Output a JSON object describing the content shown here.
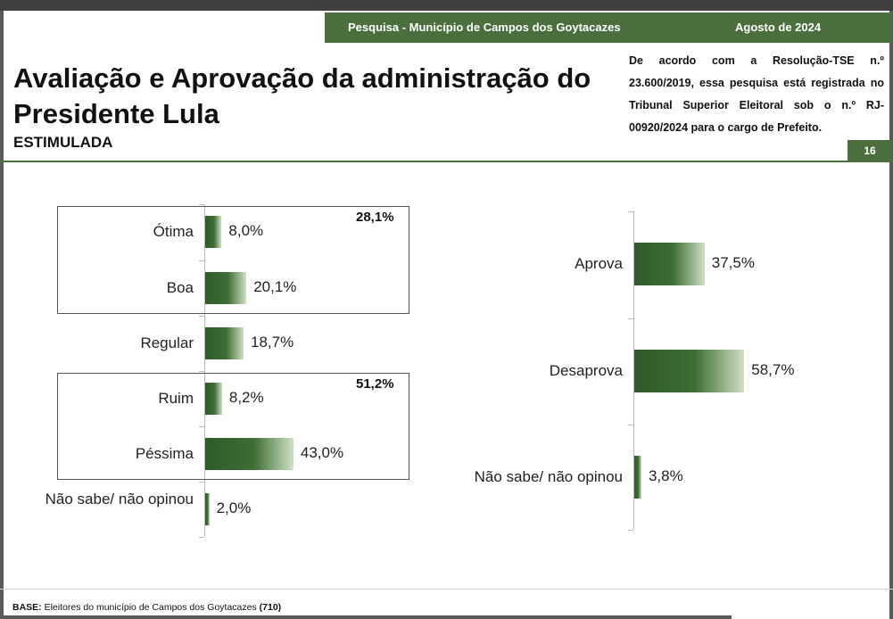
{
  "header": {
    "survey_title": "Pesquisa - Município de Campos dos Goytacazes",
    "date": "Agosto de 2024",
    "legal_text": "De acordo com a Resolução-TSE n.º 23.600/2019, essa pesquisa está registrada no Tribunal Superior Eleitoral sob o n.º RJ-00920/2024 para o cargo de Prefeito.",
    "page_number": "16"
  },
  "title": "Avaliação e Aprovação da administração do Presidente Lula",
  "subtitle": "ESTIMULADA",
  "footer": {
    "base_label": "BASE:",
    "base_text": "Eleitores do município de Campos dos Goytacazes",
    "base_n": "(710)"
  },
  "colors": {
    "accent": "#4a6e3c",
    "bar": "#3f6d34"
  },
  "chart_data": [
    {
      "type": "bar",
      "orientation": "horizontal",
      "categories": [
        "Ótima",
        "Boa",
        "Regular",
        "Ruim",
        "Péssima",
        "Não sabe/ não opinou"
      ],
      "values": [
        8.0,
        20.1,
        18.7,
        8.2,
        43.0,
        2.0
      ],
      "value_labels": [
        "8,0%",
        "20,1%",
        "18,7%",
        "8,2%",
        "43,0%",
        "2,0%"
      ],
      "groups": [
        {
          "members": [
            "Ótima",
            "Boa"
          ],
          "total": 28.1,
          "total_label": "28,1%"
        },
        {
          "members": [
            "Ruim",
            "Péssima"
          ],
          "total": 51.2,
          "total_label": "51,2%"
        }
      ],
      "xlim": [
        0,
        100
      ],
      "grid": false
    },
    {
      "type": "bar",
      "orientation": "horizontal",
      "categories": [
        "Aprova",
        "Desaprova",
        "Não sabe/ não opinou"
      ],
      "values": [
        37.5,
        58.7,
        3.8
      ],
      "value_labels": [
        "37,5%",
        "58,7%",
        "3,8%"
      ],
      "xlim": [
        0,
        100
      ],
      "grid": false
    }
  ]
}
